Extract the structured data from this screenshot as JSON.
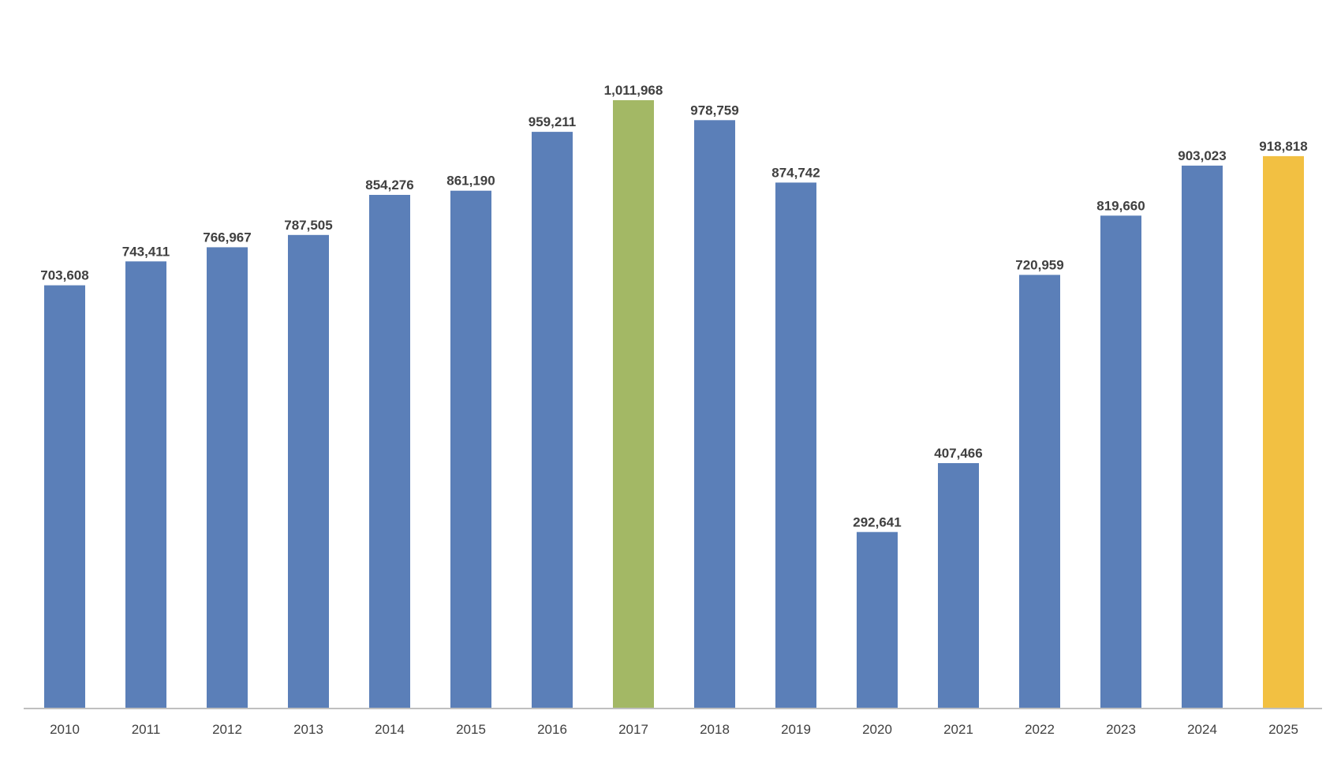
{
  "chart_data": {
    "type": "bar",
    "categories": [
      "2010",
      "2011",
      "2012",
      "2013",
      "2014",
      "2015",
      "2016",
      "2017",
      "2018",
      "2019",
      "2020",
      "2021",
      "2022",
      "2023",
      "2024",
      "2025"
    ],
    "values": [
      703608,
      743411,
      766967,
      787505,
      854276,
      861190,
      959211,
      1011968,
      978759,
      874742,
      292641,
      407466,
      720959,
      819660,
      903023,
      918818
    ],
    "value_labels": [
      "703,608",
      "743,411",
      "766,967",
      "787,505",
      "854,276",
      "861,190",
      "959,211",
      "1,011,968",
      "978,759",
      "874,742",
      "292,641",
      "407,466",
      "720,959",
      "819,660",
      "903,023",
      "918,818"
    ],
    "colors": {
      "default": "#5b7fb8",
      "highlight_max": "#a3b865",
      "highlight_latest": "#f2c042",
      "axis": "#bfbfbf"
    },
    "bar_colors": [
      "#5b7fb8",
      "#5b7fb8",
      "#5b7fb8",
      "#5b7fb8",
      "#5b7fb8",
      "#5b7fb8",
      "#5b7fb8",
      "#a3b865",
      "#5b7fb8",
      "#5b7fb8",
      "#5b7fb8",
      "#5b7fb8",
      "#5b7fb8",
      "#5b7fb8",
      "#5b7fb8",
      "#f2c042"
    ],
    "ylim": [
      0,
      1011968
    ],
    "grid": false,
    "legend": "none"
  }
}
